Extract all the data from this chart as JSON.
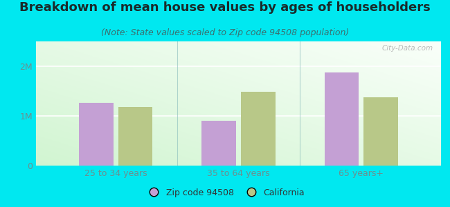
{
  "title": "Breakdown of mean house values by ages of householders",
  "subtitle": "(Note: State values scaled to Zip code 94508 population)",
  "categories": [
    "25 to 34 years",
    "35 to 64 years",
    "65 years+"
  ],
  "zip_values": [
    1270000,
    900000,
    1870000
  ],
  "ca_values": [
    1180000,
    1480000,
    1380000
  ],
  "zip_color": "#c4a0d4",
  "ca_color": "#b8c888",
  "background_outer": "#00e8f0",
  "ylim": [
    0,
    2500000
  ],
  "yticks": [
    0,
    1000000,
    2000000
  ],
  "ytick_labels": [
    "0",
    "1M",
    "2M"
  ],
  "legend_labels": [
    "Zip code 94508",
    "California"
  ],
  "title_fontsize": 13,
  "subtitle_fontsize": 9,
  "tick_fontsize": 9,
  "legend_fontsize": 9,
  "title_color": "#1a2a2a",
  "subtitle_color": "#3a7070",
  "tick_color": "#6a9090",
  "watermark": "City-Data.com"
}
